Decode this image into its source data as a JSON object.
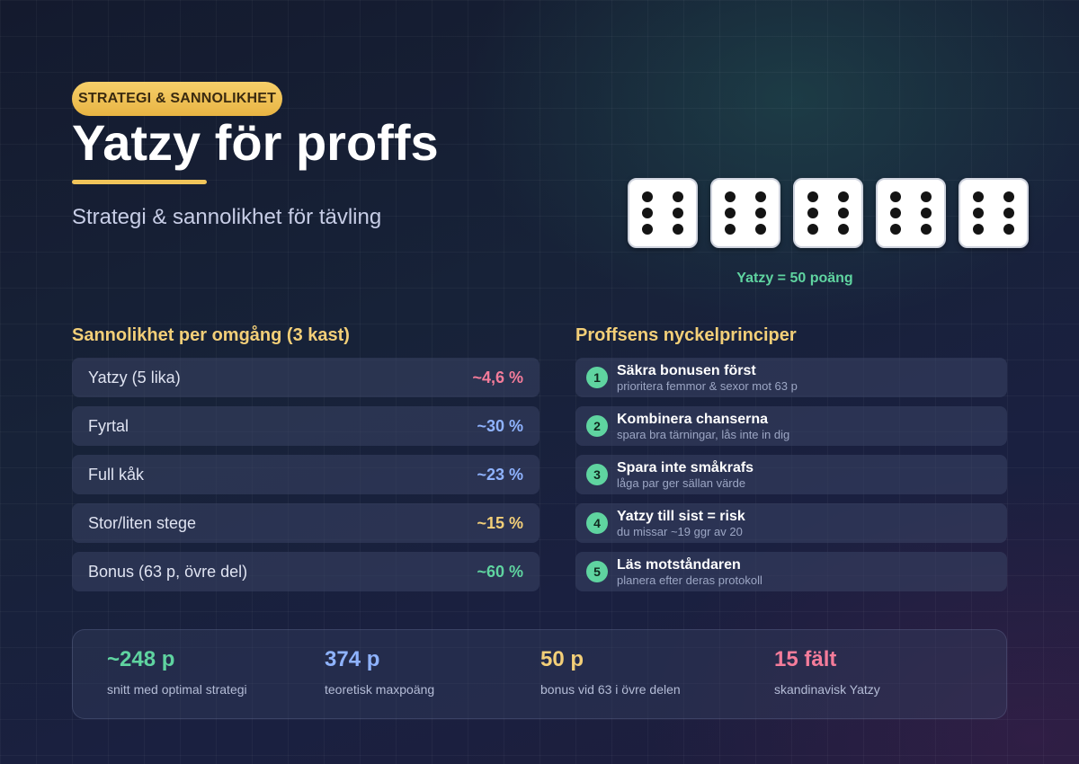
{
  "tag": "STRATEGI & SANNOLIKHET",
  "title": "Yatzy för proffs",
  "subtitle": "Strategi & sannolikhet för tävling",
  "dice": {
    "count": 5,
    "face": 6,
    "caption": "Yatzy = 50 poäng"
  },
  "probabilities": {
    "title": "Sannolikhet per omgång (3 kast)",
    "rows": [
      {
        "label": "Yatzy (5 lika)",
        "value": "~4,6 %",
        "color": "#f47c9a"
      },
      {
        "label": "Fyrtal",
        "value": "~30 %",
        "color": "#8fb3ff"
      },
      {
        "label": "Full kåk",
        "value": "~23 %",
        "color": "#8fb3ff"
      },
      {
        "label": "Stor/liten stege",
        "value": "~15 %",
        "color": "#f3cf78"
      },
      {
        "label": "Bonus (63 p, övre del)",
        "value": "~60 %",
        "color": "#5fd4a0"
      }
    ]
  },
  "principles": {
    "title": "Proffsens nyckelprinciper",
    "items": [
      {
        "num": "1",
        "title": "Säkra bonusen först",
        "sub": "prioritera femmor & sexor mot 63 p"
      },
      {
        "num": "2",
        "title": "Kombinera chanserna",
        "sub": "spara bra tärningar, lås inte in dig"
      },
      {
        "num": "3",
        "title": "Spara inte småkrafs",
        "sub": "låga par ger sällan värde"
      },
      {
        "num": "4",
        "title": "Yatzy till sist = risk",
        "sub": "du missar ~19 ggr av 20"
      },
      {
        "num": "5",
        "title": "Läs motståndaren",
        "sub": "planera efter deras protokoll"
      }
    ]
  },
  "stats": [
    {
      "value": "~248 p",
      "label": "snitt med optimal strategi",
      "color": "#5fd4a0"
    },
    {
      "value": "374 p",
      "label": "teoretisk maxpoäng",
      "color": "#8fb3ff"
    },
    {
      "value": "50 p",
      "label": "bonus vid 63 i övre delen",
      "color": "#f3cf78"
    },
    {
      "value": "15 fält",
      "label": "skandinavisk Yatzy",
      "color": "#f47c9a"
    }
  ]
}
